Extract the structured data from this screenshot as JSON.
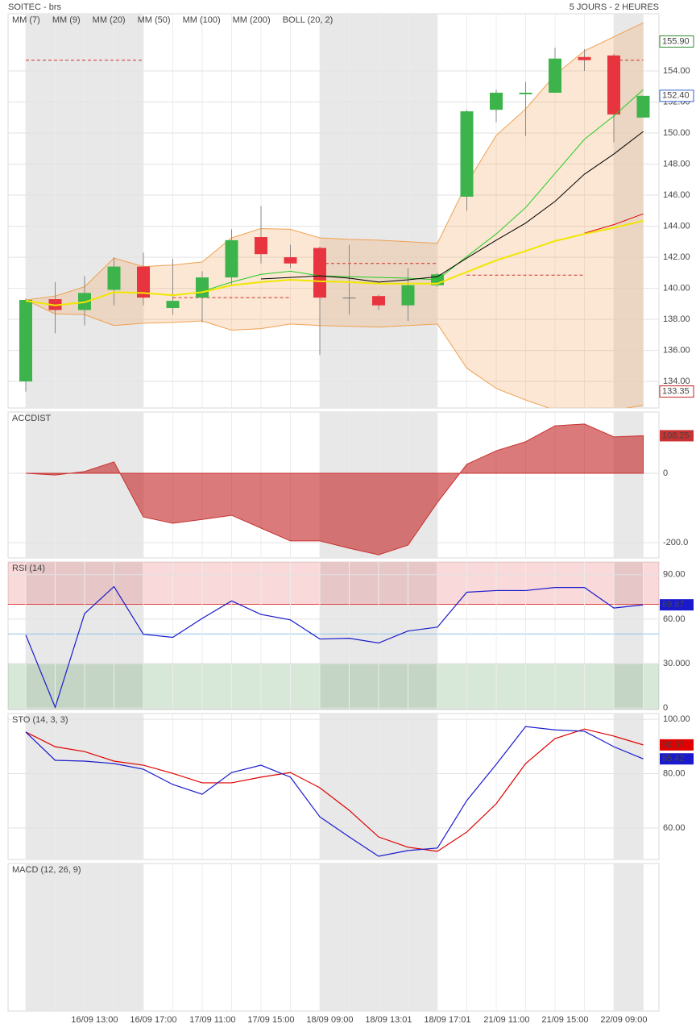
{
  "header": {
    "title": "SOITEC - brs",
    "period": "5 JOURS - 2 HEURES"
  },
  "chart_data": [
    {
      "type": "candlestick",
      "categories": [
        null,
        null,
        null,
        "16/09 13:00",
        null,
        "16/09 17:00",
        null,
        "17/09 11:00",
        null,
        "17/09 15:00",
        null,
        "18/09 09:00",
        null,
        "18/09 13:01",
        null,
        "18/09 17:01",
        null,
        "21/09 11:00",
        null,
        "21/09 15:00",
        null,
        "22/09 09:00"
      ],
      "open": [
        134.0,
        139.3,
        138.6,
        139.9,
        141.4,
        138.73,
        139.4,
        140.7,
        143.3,
        142.0,
        142.6,
        139.4,
        139.5,
        138.9,
        140.2,
        145.9,
        151.5,
        152.5,
        152.6,
        154.9,
        155.0,
        151.0
      ],
      "high": [
        139.35,
        140.4,
        140.8,
        142.0,
        142.3,
        141.9,
        141.1,
        143.8,
        145.3,
        142.8,
        142.7,
        142.8,
        139.6,
        141.3,
        141.0,
        151.5,
        152.8,
        153.3,
        155.5,
        155.4,
        155.1,
        152.4
      ],
      "low": [
        133.35,
        137.1,
        137.6,
        138.9,
        138.9,
        138.3,
        137.8,
        140.2,
        141.6,
        141.3,
        135.7,
        138.3,
        138.6,
        137.9,
        140.1,
        145.0,
        150.7,
        149.8,
        152.6,
        154.0,
        149.4,
        151.0
      ],
      "close": [
        139.25,
        138.6,
        139.7,
        141.4,
        139.4,
        139.19,
        140.7,
        143.1,
        142.2,
        141.6,
        139.4,
        139.4,
        138.9,
        140.2,
        140.9,
        151.4,
        152.6,
        152.6,
        154.8,
        154.7,
        151.2,
        152.4
      ],
      "up_color": "#3cb44b",
      "down_color": "#e8343f",
      "series": [
        {
          "name": "MM (7)",
          "color": "#22cc22",
          "values": [
            null,
            null,
            null,
            null,
            null,
            null,
            139.8,
            140.4,
            140.9,
            141.1,
            140.8,
            140.75,
            140.7,
            140.65,
            140.55,
            142.05,
            143.5,
            145.2,
            147.4,
            149.6,
            151.1,
            152.8
          ]
        },
        {
          "name": "MM (9)",
          "color": "#000000",
          "values": [
            null,
            null,
            null,
            null,
            null,
            null,
            null,
            null,
            140.6,
            140.7,
            140.8,
            140.65,
            140.4,
            140.55,
            140.75,
            141.95,
            143.1,
            144.2,
            145.6,
            147.35,
            148.65,
            150.1
          ]
        },
        {
          "name": "MM (20)",
          "color": "#e00000",
          "values": [
            null,
            null,
            null,
            null,
            null,
            null,
            null,
            null,
            null,
            null,
            null,
            null,
            null,
            null,
            null,
            null,
            null,
            null,
            null,
            143.55,
            144.1,
            144.8
          ]
        },
        {
          "name": "MM (50)",
          "color": "#0000dd",
          "values": [
            null,
            null,
            null,
            null,
            null,
            null,
            null,
            null,
            null,
            null,
            null,
            null,
            null,
            null,
            null,
            null,
            null,
            null,
            null,
            null,
            null,
            null
          ]
        },
        {
          "name": "MM (100)",
          "color": "#dd00dd",
          "values": [
            null,
            null,
            null,
            null,
            null,
            null,
            null,
            null,
            null,
            null,
            null,
            null,
            null,
            null,
            null,
            null,
            null,
            null,
            null,
            null,
            null,
            null
          ]
        },
        {
          "name": "MM (200)",
          "color": "#f2e600",
          "values": [
            139.2,
            138.9,
            139.1,
            139.75,
            139.7,
            139.55,
            139.75,
            140.2,
            140.4,
            140.55,
            140.45,
            140.4,
            140.3,
            140.3,
            140.3,
            141.05,
            141.8,
            142.4,
            143.05,
            143.5,
            143.9,
            144.35
          ]
        }
      ],
      "bollinger": {
        "name": "BOLL (20, 2)",
        "color": "#f0a050",
        "upper": [
          139.25,
          139.5,
          140.1,
          141.95,
          141.4,
          141.5,
          141.7,
          143.25,
          143.85,
          143.8,
          143.25,
          143.15,
          143.1,
          143.0,
          142.9,
          146.75,
          149.85,
          151.55,
          153.75,
          155.3,
          156.2,
          157.1
        ],
        "lower": [
          139.25,
          138.35,
          138.3,
          137.6,
          137.75,
          137.8,
          137.9,
          137.3,
          137.4,
          137.7,
          137.6,
          137.55,
          137.5,
          137.6,
          137.7,
          134.85,
          133.55,
          132.8,
          132.15,
          132.1,
          132.15,
          132.45
        ]
      },
      "dashed_levels": [
        {
          "from": 0,
          "to": 4,
          "value": 154.7
        },
        {
          "from": 5,
          "to": 9,
          "value": 139.4
        },
        {
          "from": 10,
          "to": 14,
          "value": 141.6
        },
        {
          "from": 15,
          "to": 19,
          "value": 140.85
        },
        {
          "from": 20,
          "to": 21,
          "value": 154.7
        }
      ],
      "dashed_color": "#d03030",
      "price_markers": [
        {
          "value": 155.9,
          "label": "155.90",
          "color": "#2e8b2e"
        },
        {
          "value": 152.4,
          "label": "152.40",
          "color": "#3060d0"
        },
        {
          "value": 133.35,
          "label": "133.35",
          "color": "#c02020"
        }
      ],
      "shaded": [
        [
          0,
          4
        ],
        [
          10,
          14
        ],
        [
          20,
          21
        ]
      ],
      "ylim": [
        132.29,
        157.69
      ],
      "yticks": [
        {
          "value": 134,
          "label": "134.00"
        },
        {
          "value": 136,
          "label": "136.00"
        },
        {
          "value": 138,
          "label": "138.00"
        },
        {
          "value": 140,
          "label": "140.00"
        },
        {
          "value": 142,
          "label": "142.00"
        },
        {
          "value": 144,
          "label": "144.00"
        },
        {
          "value": 146,
          "label": "146.00"
        },
        {
          "value": 148,
          "label": "148.00"
        },
        {
          "value": 150,
          "label": "150.00"
        },
        {
          "value": 152,
          "label": "152.00"
        },
        {
          "value": 154,
          "label": "154.00"
        }
      ],
      "grid": true
    },
    {
      "type": "area",
      "title": "ACCDIST",
      "color": "#c83232",
      "values": [
        0,
        -5,
        5,
        33,
        -126,
        -144,
        -133,
        -121,
        -158,
        -195,
        -195,
        -216,
        -235,
        -207,
        -84,
        26,
        65,
        91,
        137,
        142,
        105,
        108.25
      ],
      "last_label": true,
      "ylim": [
        -244,
        176.7
      ],
      "yticks": [
        0,
        {
          "value": -200,
          "label": "-200.0"
        }
      ],
      "grid": true
    },
    {
      "type": "line",
      "title": "RSI (14)",
      "series": [
        {
          "color": "#1a1acc",
          "values": [
            49.3,
            0.5,
            63.75,
            82.0,
            49.8,
            47.7,
            60.5,
            72.3,
            63.2,
            59.5,
            46.6,
            47.1,
            43.9,
            52.0,
            54.6,
            78.2,
            79.3,
            79.3,
            81.4,
            81.4,
            67.5,
            69.67
          ]
        }
      ],
      "last_label": true,
      "overbought": 70,
      "overbought_color": "#e04040",
      "midline": 50,
      "midline_color": "#8fc4e8",
      "oversold": 30,
      "oversold_color": "#3a8a3a",
      "ylim": [
        -1,
        98.6
      ],
      "yticks": [
        {
          "value": 90,
          "label": "90.00"
        },
        {
          "value": 60,
          "label": "60.00"
        },
        {
          "value": 30,
          "label": "30.000"
        },
        0
      ],
      "grid": true
    },
    {
      "type": "line",
      "title": "STO (14, 3, 3)",
      "series": [
        {
          "color": "#e00000",
          "values": [
            95.3,
            89.9,
            88.1,
            84.6,
            83.1,
            80.1,
            76.6,
            76.6,
            78.7,
            80.4,
            74.8,
            66.5,
            56.7,
            52.9,
            51.4,
            58.5,
            68.9,
            83.7,
            92.9,
            96.4,
            93.8,
            90.57
          ]
        },
        {
          "color": "#1a1acc",
          "values": [
            95.3,
            84.9,
            84.6,
            83.7,
            81.6,
            76.0,
            72.4,
            80.4,
            83.1,
            78.7,
            64.1,
            56.7,
            49.6,
            51.7,
            52.6,
            70.1,
            83.4,
            97.3,
            96.1,
            95.6,
            89.9,
            85.42
          ]
        }
      ],
      "last_label": true,
      "ylim": [
        48.4,
        102.1
      ],
      "yticks": [
        {
          "value": 100,
          "label": "100.00"
        },
        {
          "value": 80,
          "label": "80.00"
        },
        {
          "value": 60,
          "label": "60.00"
        }
      ],
      "grid": true
    },
    {
      "type": "line",
      "title": "MACD (12, 26, 9)"
    }
  ]
}
